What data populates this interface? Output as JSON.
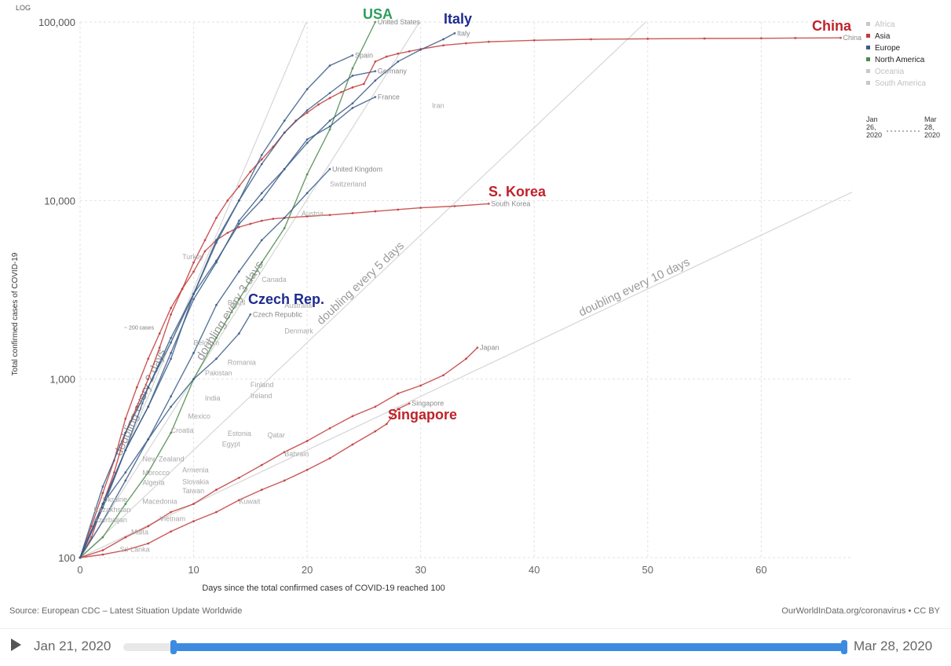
{
  "chart_data": {
    "type": "line",
    "title": "",
    "y_scale_label": "LOG",
    "ylabel": "Total confirmed cases of COVID-19",
    "xlabel": "Days since the total confirmed cases of COVID-19 reached 100",
    "y_scale": "log",
    "ylim": [
      100,
      100000
    ],
    "xlim": [
      0,
      68
    ],
    "x_ticks": [
      0,
      10,
      20,
      30,
      40,
      50,
      60
    ],
    "x_tick_labels": [
      "0",
      "10",
      "20",
      "30",
      "40",
      "50",
      "60"
    ],
    "y_ticks": [
      100,
      1000,
      10000,
      100000
    ],
    "y_tick_labels": [
      "100",
      "1,000",
      "10,000",
      "100,000"
    ],
    "grid": true,
    "legend_position": "top-right",
    "legend": [
      {
        "name": "Africa",
        "color": "#c8c8c8"
      },
      {
        "name": "Asia",
        "color": "#c23b3b"
      },
      {
        "name": "Europe",
        "color": "#3a5d87"
      },
      {
        "name": "North America",
        "color": "#4d8a4d"
      },
      {
        "name": "Oceania",
        "color": "#c8c8c8"
      },
      {
        "name": "South America",
        "color": "#c8c8c8"
      }
    ],
    "legend_time": {
      "start": "Jan\n26,\n2020",
      "end": "Mar\n28,\n2020"
    },
    "doubling_lines": [
      {
        "label": "doubling every 2 days",
        "days": 2
      },
      {
        "label": "doubling every 3 days",
        "days": 3
      },
      {
        "label": "doubling every 5 days",
        "days": 5
      },
      {
        "label": "doubling every 10 days",
        "days": 10
      }
    ],
    "series": [
      {
        "name": "China",
        "color": "#c23b3b",
        "points": [
          [
            0,
            100
          ],
          [
            1,
            130
          ],
          [
            2,
            200
          ],
          [
            3,
            300
          ],
          [
            4,
            500
          ],
          [
            5,
            700
          ],
          [
            6,
            1000
          ],
          [
            7,
            1500
          ],
          [
            8,
            2300
          ],
          [
            9,
            3200
          ],
          [
            10,
            4500
          ],
          [
            11,
            6000
          ],
          [
            12,
            8000
          ],
          [
            13,
            10000
          ],
          [
            14,
            12000
          ],
          [
            15,
            14500
          ],
          [
            16,
            17000
          ],
          [
            17,
            20000
          ],
          [
            18,
            24000
          ],
          [
            19,
            28000
          ],
          [
            20,
            31000
          ],
          [
            21,
            34500
          ],
          [
            22,
            37500
          ],
          [
            23,
            40500
          ],
          [
            24,
            43000
          ],
          [
            25,
            45000
          ],
          [
            26,
            60000
          ],
          [
            27,
            64000
          ],
          [
            28,
            66500
          ],
          [
            29,
            68500
          ],
          [
            30,
            70500
          ],
          [
            32,
            74000
          ],
          [
            34,
            76000
          ],
          [
            36,
            77500
          ],
          [
            40,
            79000
          ],
          [
            45,
            80000
          ],
          [
            50,
            80500
          ],
          [
            55,
            80800
          ],
          [
            60,
            81000
          ],
          [
            63,
            81300
          ],
          [
            67,
            81500
          ]
        ]
      },
      {
        "name": "South Korea",
        "color": "#c23b3b",
        "points": [
          [
            0,
            100
          ],
          [
            1,
            150
          ],
          [
            2,
            230
          ],
          [
            3,
            350
          ],
          [
            4,
            600
          ],
          [
            5,
            900
          ],
          [
            6,
            1300
          ],
          [
            7,
            1800
          ],
          [
            8,
            2500
          ],
          [
            9,
            3200
          ],
          [
            10,
            4000
          ],
          [
            11,
            5200
          ],
          [
            12,
            6000
          ],
          [
            13,
            6600
          ],
          [
            14,
            7100
          ],
          [
            15,
            7400
          ],
          [
            16,
            7700
          ],
          [
            17,
            7900
          ],
          [
            18,
            8000
          ],
          [
            20,
            8150
          ],
          [
            22,
            8300
          ],
          [
            24,
            8500
          ],
          [
            26,
            8700
          ],
          [
            28,
            8900
          ],
          [
            30,
            9100
          ],
          [
            33,
            9300
          ],
          [
            36,
            9600
          ]
        ]
      },
      {
        "name": "Japan",
        "color": "#c23b3b",
        "points": [
          [
            0,
            100
          ],
          [
            2,
            110
          ],
          [
            4,
            130
          ],
          [
            6,
            150
          ],
          [
            8,
            180
          ],
          [
            10,
            200
          ],
          [
            12,
            240
          ],
          [
            14,
            280
          ],
          [
            16,
            330
          ],
          [
            18,
            390
          ],
          [
            20,
            450
          ],
          [
            22,
            530
          ],
          [
            24,
            620
          ],
          [
            26,
            700
          ],
          [
            28,
            830
          ],
          [
            30,
            920
          ],
          [
            32,
            1050
          ],
          [
            34,
            1300
          ],
          [
            35,
            1500
          ]
        ]
      },
      {
        "name": "Singapore",
        "color": "#c23b3b",
        "points": [
          [
            0,
            100
          ],
          [
            2,
            104
          ],
          [
            4,
            110
          ],
          [
            6,
            120
          ],
          [
            8,
            140
          ],
          [
            10,
            160
          ],
          [
            12,
            180
          ],
          [
            14,
            210
          ],
          [
            16,
            240
          ],
          [
            18,
            270
          ],
          [
            20,
            310
          ],
          [
            22,
            360
          ],
          [
            24,
            430
          ],
          [
            26,
            510
          ],
          [
            27,
            560
          ],
          [
            28,
            680
          ],
          [
            29,
            730
          ]
        ]
      },
      {
        "name": "United States",
        "color": "#4d8a4d",
        "points": [
          [
            0,
            100
          ],
          [
            2,
            130
          ],
          [
            4,
            200
          ],
          [
            6,
            300
          ],
          [
            8,
            500
          ],
          [
            10,
            1000
          ],
          [
            12,
            1700
          ],
          [
            14,
            2800
          ],
          [
            16,
            4500
          ],
          [
            18,
            7000
          ],
          [
            20,
            14000
          ],
          [
            22,
            25000
          ],
          [
            24,
            55000
          ],
          [
            26,
            100000
          ]
        ]
      },
      {
        "name": "Italy",
        "color": "#3a5d87",
        "points": [
          [
            0,
            100
          ],
          [
            2,
            250
          ],
          [
            4,
            500
          ],
          [
            6,
            900
          ],
          [
            8,
            1700
          ],
          [
            10,
            3000
          ],
          [
            12,
            4600
          ],
          [
            14,
            7400
          ],
          [
            16,
            10100
          ],
          [
            18,
            15000
          ],
          [
            20,
            21000
          ],
          [
            22,
            28000
          ],
          [
            24,
            35000
          ],
          [
            26,
            47000
          ],
          [
            28,
            60000
          ],
          [
            30,
            70000
          ],
          [
            32,
            80000
          ],
          [
            33,
            86500
          ]
        ]
      },
      {
        "name": "Spain",
        "color": "#3a5d87",
        "points": [
          [
            0,
            100
          ],
          [
            2,
            190
          ],
          [
            4,
            400
          ],
          [
            6,
            700
          ],
          [
            8,
            1300
          ],
          [
            10,
            3000
          ],
          [
            12,
            6000
          ],
          [
            14,
            10000
          ],
          [
            16,
            18000
          ],
          [
            18,
            28000
          ],
          [
            20,
            42000
          ],
          [
            22,
            57000
          ],
          [
            24,
            65000
          ]
        ]
      },
      {
        "name": "Germany",
        "color": "#3a5d87",
        "points": [
          [
            0,
            100
          ],
          [
            2,
            200
          ],
          [
            4,
            400
          ],
          [
            6,
            900
          ],
          [
            8,
            1600
          ],
          [
            10,
            3000
          ],
          [
            12,
            5800
          ],
          [
            14,
            10000
          ],
          [
            16,
            16000
          ],
          [
            18,
            24000
          ],
          [
            20,
            32000
          ],
          [
            22,
            40000
          ],
          [
            24,
            50000
          ],
          [
            26,
            53000
          ]
        ]
      },
      {
        "name": "France",
        "color": "#3a5d87",
        "points": [
          [
            0,
            100
          ],
          [
            2,
            200
          ],
          [
            4,
            400
          ],
          [
            6,
            700
          ],
          [
            8,
            1400
          ],
          [
            10,
            2800
          ],
          [
            12,
            4500
          ],
          [
            14,
            7700
          ],
          [
            16,
            11000
          ],
          [
            18,
            15000
          ],
          [
            20,
            22000
          ],
          [
            22,
            26000
          ],
          [
            24,
            33000
          ],
          [
            26,
            38000
          ]
        ]
      },
      {
        "name": "United Kingdom",
        "color": "#3a5d87",
        "points": [
          [
            0,
            100
          ],
          [
            2,
            160
          ],
          [
            4,
            270
          ],
          [
            6,
            460
          ],
          [
            8,
            800
          ],
          [
            10,
            1400
          ],
          [
            12,
            2600
          ],
          [
            14,
            4000
          ],
          [
            16,
            6000
          ],
          [
            18,
            8000
          ],
          [
            20,
            11000
          ],
          [
            22,
            15000
          ]
        ]
      },
      {
        "name": "Czech Republic",
        "color": "#3a5d87",
        "points": [
          [
            0,
            100
          ],
          [
            2,
            200
          ],
          [
            4,
            300
          ],
          [
            6,
            460
          ],
          [
            8,
            700
          ],
          [
            10,
            1000
          ],
          [
            12,
            1300
          ],
          [
            14,
            1800
          ],
          [
            15,
            2300
          ]
        ]
      }
    ],
    "labels_gray": [
      "Iran",
      "Switzerland",
      "Austria",
      "Turkey",
      "Canada",
      "Brazil",
      "Australia",
      "Denmark",
      "Belgium",
      "Romania",
      "Pakistan",
      "Finland",
      "Ireland",
      "India",
      "Mexico",
      "Croatia",
      "Estonia",
      "Qatar",
      "Egypt",
      "Bahrain",
      "New Zealand",
      "Morocco",
      "Armenia",
      "Algeria",
      "Slovakia",
      "Taiwan",
      "Ukraine",
      "Macedonia",
      "Kazakhstan",
      "Vietnam",
      "Azerbaijan",
      "Malta",
      "Sri Lanka",
      "Kuwait"
    ],
    "annotations": [
      {
        "text": "USA",
        "color": "#2e9e5b"
      },
      {
        "text": "Italy",
        "color": "#1f2b8f"
      },
      {
        "text": "China",
        "color": "#c0222a"
      },
      {
        "text": "S. Korea",
        "color": "#c0222a"
      },
      {
        "text": "Czech Rep.",
        "color": "#1f2b8f"
      },
      {
        "text": "Singapore",
        "color": "#c0222a"
      }
    ],
    "small_note": "~ 200 cases"
  },
  "footer": {
    "source": "Source: European CDC – Latest Situation Update Worldwide",
    "credit": "OurWorldInData.org/coronavirus • CC BY"
  },
  "timeline": {
    "start_date": "Jan 21, 2020",
    "end_date": "Mar 28, 2020"
  }
}
